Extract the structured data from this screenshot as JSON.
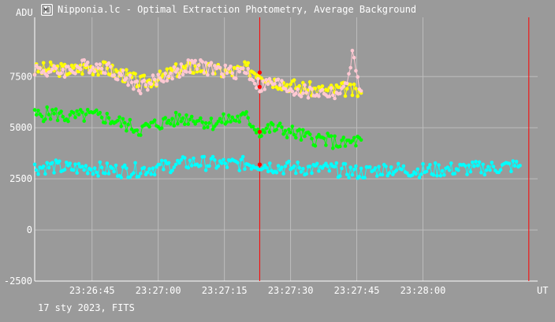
{
  "title": "Nipponia.lc - Optimal Extraction Photometry, Average Background",
  "footer": "17 sty 2023, FITS",
  "icon": "photometry-app-icon",
  "colors": {
    "background": "#9a9a9a",
    "grid": "#bdbdbd",
    "marker": "#ff0000",
    "text": "#ffffff"
  },
  "chart_data": {
    "type": "scatter",
    "ylabel": "ADU",
    "xlabel": "UT",
    "ylim": [
      -2500,
      10400
    ],
    "xlim": [
      "23:26:32",
      "23:28:26"
    ],
    "yticks": [
      -2500,
      0,
      2500,
      5000,
      7500
    ],
    "xticks": [
      "23:26:45",
      "23:27:00",
      "23:27:15",
      "23:27:30",
      "23:27:45",
      "23:28:00"
    ],
    "grid": true,
    "markers": [
      "23:27:23",
      "23:28:24"
    ],
    "series": [
      {
        "color": "#ffff00",
        "x": [
          "23:26:32",
          "23:26:36",
          "23:26:40",
          "23:26:44",
          "23:26:48",
          "23:26:52",
          "23:26:56",
          "23:27:00",
          "23:27:04",
          "23:27:08",
          "23:27:12",
          "23:27:16",
          "23:27:20",
          "23:27:23",
          "23:27:26",
          "23:27:30",
          "23:27:34",
          "23:27:38",
          "23:27:42",
          "23:27:46"
        ],
        "y": [
          7800,
          7900,
          7800,
          7950,
          7900,
          7600,
          7200,
          7400,
          7800,
          7950,
          7850,
          7700,
          7900,
          7700,
          7300,
          7100,
          6900,
          6800,
          6900,
          6700
        ]
      },
      {
        "color": "#ffc8d2",
        "x": [
          "23:26:32",
          "23:26:36",
          "23:26:40",
          "23:26:44",
          "23:26:48",
          "23:26:52",
          "23:26:56",
          "23:27:00",
          "23:27:04",
          "23:27:08",
          "23:27:12",
          "23:27:16",
          "23:27:20",
          "23:27:23",
          "23:27:26",
          "23:27:30",
          "23:27:34",
          "23:27:38",
          "23:27:42",
          "23:27:44",
          "23:27:46"
        ],
        "y": [
          7900,
          7700,
          7850,
          8050,
          8000,
          7500,
          7000,
          7350,
          7750,
          8050,
          7900,
          7700,
          7800,
          7000,
          7200,
          6900,
          6700,
          6700,
          6700,
          8500,
          6800
        ]
      },
      {
        "color": "#00ff00",
        "x": [
          "23:26:32",
          "23:26:36",
          "23:26:40",
          "23:26:44",
          "23:26:48",
          "23:26:52",
          "23:26:56",
          "23:27:00",
          "23:27:04",
          "23:27:08",
          "23:27:12",
          "23:27:16",
          "23:27:20",
          "23:27:23",
          "23:27:26",
          "23:27:30",
          "23:27:34",
          "23:27:38",
          "23:27:42",
          "23:27:46"
        ],
        "y": [
          5600,
          5700,
          5500,
          5600,
          5500,
          5200,
          4900,
          5200,
          5400,
          5500,
          5200,
          5400,
          5500,
          4800,
          5000,
          4800,
          4500,
          4400,
          4200,
          4400
        ]
      },
      {
        "color": "#00ffff",
        "x": [
          "23:26:32",
          "23:26:36",
          "23:26:40",
          "23:26:44",
          "23:26:48",
          "23:26:52",
          "23:26:56",
          "23:27:00",
          "23:27:04",
          "23:27:08",
          "23:27:12",
          "23:27:16",
          "23:27:20",
          "23:27:23",
          "23:27:28",
          "23:27:34",
          "23:27:40",
          "23:27:46",
          "23:27:52",
          "23:27:58",
          "23:28:04",
          "23:28:10",
          "23:28:16",
          "23:28:22"
        ],
        "y": [
          3050,
          3100,
          3000,
          3050,
          2950,
          2900,
          2950,
          3050,
          3200,
          3300,
          3250,
          3200,
          3250,
          3200,
          3050,
          3000,
          2950,
          2800,
          3000,
          2900,
          2950,
          3000,
          3050,
          3150
        ]
      }
    ]
  }
}
